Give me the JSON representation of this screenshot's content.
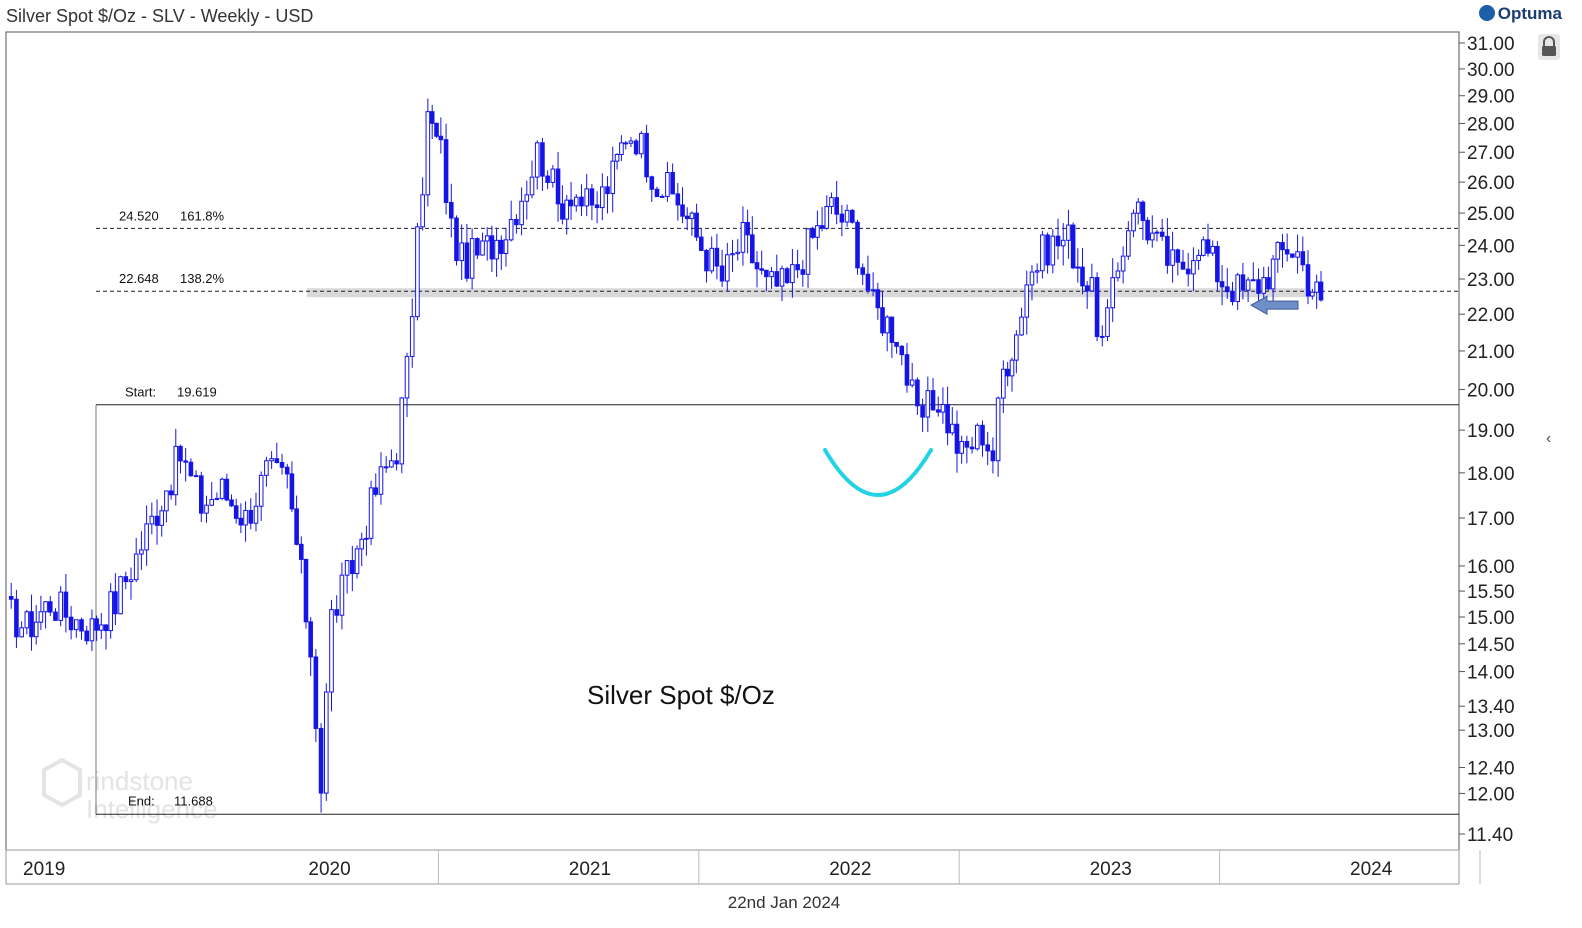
{
  "header": {
    "title": "Silver Spot $/Oz - SLV - Weekly - USD",
    "brand": "Optuma"
  },
  "footer": {
    "date": "22nd Jan 2024"
  },
  "watermark": {
    "text_line1": "rindstone",
    "text_line2": "Intelligence"
  },
  "icons": {
    "lock": "lock-icon",
    "collapse": "chevron-left-icon",
    "arrow": "left-arrow-icon"
  },
  "colors": {
    "candle": "#1515e6",
    "neckline_arc": "#22d3e6",
    "arrow": "#6f8fc8",
    "band": "#d9d9d9"
  },
  "chart_data": {
    "type": "line",
    "title": "Silver Spot $/Oz",
    "xlabel": "",
    "ylabel": "",
    "y_scale": "log",
    "ylim": [
      11.2,
      31.3
    ],
    "y_ticks": [
      "31.00",
      "30.00",
      "29.00",
      "28.00",
      "27.00",
      "26.00",
      "25.00",
      "24.00",
      "23.00",
      "22.00",
      "21.00",
      "20.00",
      "19.00",
      "18.00",
      "17.00",
      "16.00",
      "15.50",
      "15.00",
      "14.50",
      "14.00",
      "13.40",
      "13.00",
      "12.40",
      "12.00",
      "11.40"
    ],
    "x_labels": [
      "2019",
      "2020",
      "2021",
      "2022",
      "2023",
      "2024"
    ],
    "series": [
      {
        "values": [
          [
            2019.0,
            15.1
          ],
          [
            2019.08,
            14.8
          ],
          [
            2019.17,
            15.3
          ],
          [
            2019.25,
            15.0
          ],
          [
            2019.33,
            14.8
          ],
          [
            2019.42,
            15.3
          ],
          [
            2019.5,
            16.2
          ],
          [
            2019.58,
            17.2
          ],
          [
            2019.67,
            18.4
          ],
          [
            2019.75,
            17.3
          ],
          [
            2019.83,
            17.6
          ],
          [
            2019.92,
            17.0
          ],
          [
            2020.0,
            18.0
          ],
          [
            2020.08,
            17.8
          ],
          [
            2020.17,
            14.4
          ],
          [
            2020.21,
            12.1
          ],
          [
            2020.25,
            15.0
          ],
          [
            2020.33,
            16.0
          ],
          [
            2020.42,
            17.6
          ],
          [
            2020.5,
            18.6
          ],
          [
            2020.54,
            20.5
          ],
          [
            2020.58,
            24.0
          ],
          [
            2020.62,
            28.2
          ],
          [
            2020.67,
            27.0
          ],
          [
            2020.71,
            24.5
          ],
          [
            2020.75,
            23.5
          ],
          [
            2020.83,
            23.8
          ],
          [
            2020.92,
            24.5
          ],
          [
            2021.0,
            26.0
          ],
          [
            2021.04,
            27.0
          ],
          [
            2021.08,
            26.5
          ],
          [
            2021.12,
            25.2
          ],
          [
            2021.17,
            25.8
          ],
          [
            2021.25,
            25.0
          ],
          [
            2021.33,
            26.2
          ],
          [
            2021.38,
            27.7
          ],
          [
            2021.42,
            27.6
          ],
          [
            2021.5,
            26.0
          ],
          [
            2021.58,
            25.4
          ],
          [
            2021.67,
            24.0
          ],
          [
            2021.75,
            23.0
          ],
          [
            2021.83,
            24.2
          ],
          [
            2021.92,
            22.8
          ],
          [
            2022.0,
            22.8
          ],
          [
            2022.08,
            24.0
          ],
          [
            2022.17,
            25.2
          ],
          [
            2022.25,
            24.5
          ],
          [
            2022.33,
            22.2
          ],
          [
            2022.42,
            21.5
          ],
          [
            2022.5,
            19.2
          ],
          [
            2022.58,
            19.8
          ],
          [
            2022.67,
            18.4
          ],
          [
            2022.75,
            19.0
          ],
          [
            2022.79,
            18.4
          ],
          [
            2022.83,
            20.5
          ],
          [
            2022.88,
            21.5
          ],
          [
            2022.92,
            23.0
          ],
          [
            2023.0,
            24.0
          ],
          [
            2023.08,
            24.2
          ],
          [
            2023.17,
            22.5
          ],
          [
            2023.21,
            21.2
          ],
          [
            2023.25,
            22.5
          ],
          [
            2023.29,
            24.0
          ],
          [
            2023.33,
            25.4
          ],
          [
            2023.42,
            24.0
          ],
          [
            2023.5,
            23.2
          ],
          [
            2023.58,
            24.2
          ],
          [
            2023.67,
            23.0
          ],
          [
            2023.75,
            22.6
          ],
          [
            2023.83,
            23.0
          ],
          [
            2023.92,
            24.0
          ],
          [
            2023.96,
            23.8
          ],
          [
            2024.0,
            23.0
          ],
          [
            2024.05,
            22.4
          ]
        ]
      }
    ],
    "annotations": {
      "fib_161": {
        "value": "24.520",
        "pct": "161.8%"
      },
      "fib_138": {
        "value": "22.648",
        "pct": "138.2%"
      },
      "start": {
        "label": "Start:",
        "value": "19.619"
      },
      "end": {
        "label": "End:",
        "value": "11.688"
      }
    }
  }
}
